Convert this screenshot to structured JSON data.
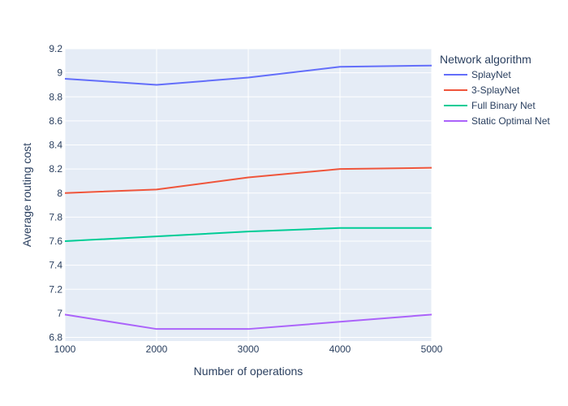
{
  "chart_data": {
    "type": "line",
    "xlabel": "Number of operations",
    "ylabel": "Average routing cost",
    "x": [
      1000,
      2000,
      3000,
      4000,
      5000
    ],
    "xlim": [
      1000,
      5000
    ],
    "ylim": [
      6.77,
      9.2
    ],
    "xticks": [
      "1000",
      "2000",
      "3000",
      "4000",
      "5000"
    ],
    "yticks": [
      "6.8",
      "7",
      "7.2",
      "7.4",
      "7.6",
      "7.8",
      "8",
      "8.2",
      "8.4",
      "8.6",
      "8.8",
      "9",
      "9.2"
    ],
    "grid": true,
    "legend": {
      "title": "Network algorithm",
      "placement": "top-right outside plot"
    },
    "series": [
      {
        "name": "SplayNet",
        "color": "#636efa",
        "values": [
          8.95,
          8.9,
          8.96,
          9.05,
          9.06
        ]
      },
      {
        "name": "3-SplayNet",
        "color": "#ef553b",
        "values": [
          8.0,
          8.03,
          8.13,
          8.2,
          8.21
        ]
      },
      {
        "name": "Full Binary Net",
        "color": "#00cc96",
        "values": [
          7.6,
          7.64,
          7.68,
          7.71,
          7.71
        ]
      },
      {
        "name": "Static Optimal Net",
        "color": "#ab63fa",
        "values": [
          6.99,
          6.87,
          6.87,
          6.93,
          6.99
        ]
      }
    ]
  }
}
